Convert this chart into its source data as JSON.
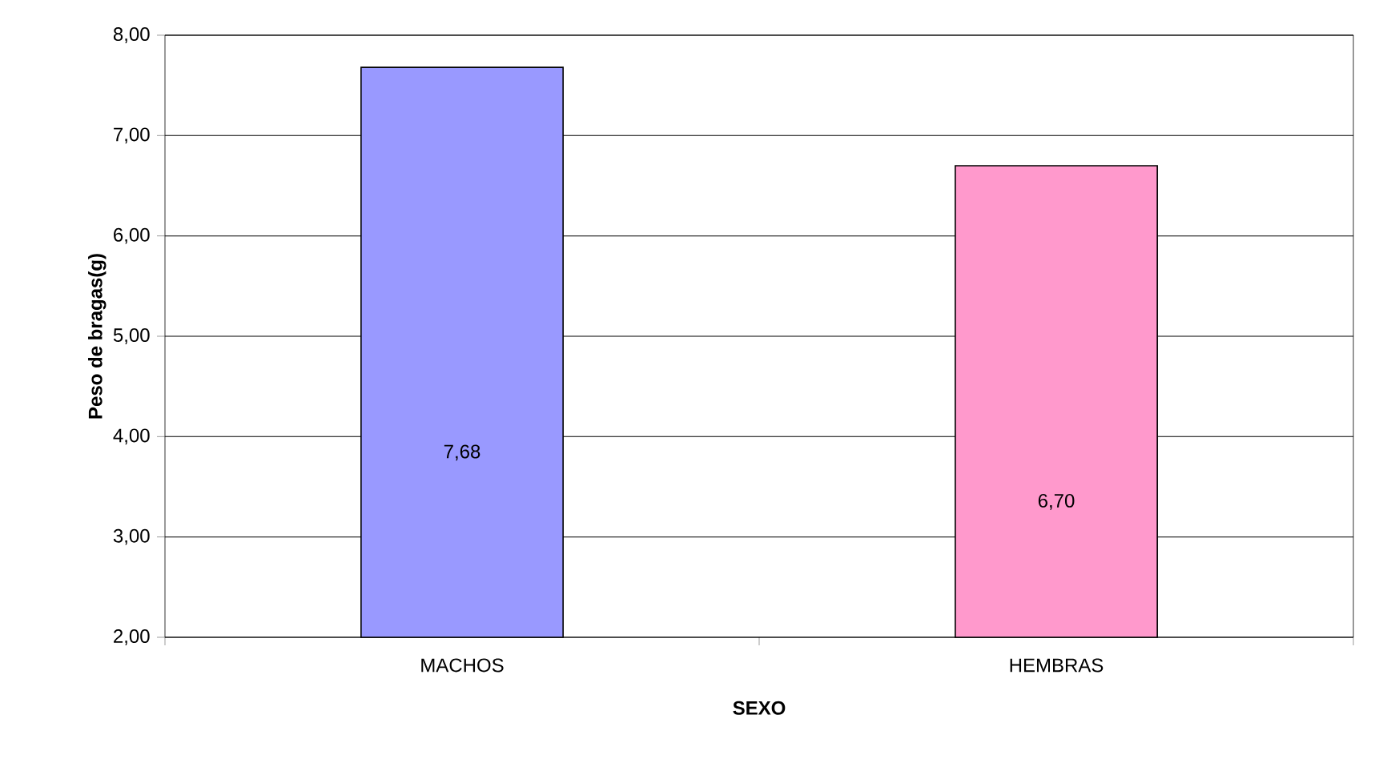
{
  "chart_data": {
    "type": "bar",
    "xlabel": "SEXO",
    "ylabel": "Peso de bragas(g)",
    "categories": [
      "MACHOS",
      "HEMBRAS"
    ],
    "values": [
      7.68,
      6.7
    ],
    "colors": [
      "#9999ff",
      "#ff99cc"
    ],
    "value_labels": [
      "7,68",
      "6,70"
    ],
    "ylim": [
      2,
      8
    ],
    "yticks": [
      {
        "value": 2,
        "label": "2,00"
      },
      {
        "value": 3,
        "label": "3,00"
      },
      {
        "value": 4,
        "label": "4,00"
      },
      {
        "value": 5,
        "label": "5,00"
      },
      {
        "value": 6,
        "label": "6,00"
      },
      {
        "value": 7,
        "label": "7,00"
      },
      {
        "value": 8,
        "label": "8,00"
      }
    ],
    "grid": "y"
  }
}
